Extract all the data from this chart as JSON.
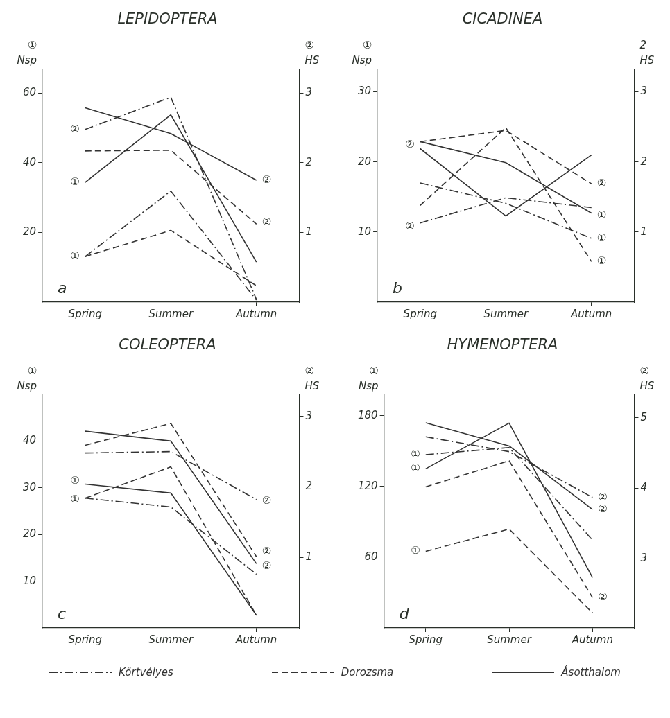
{
  "chart_data": [
    {
      "type": "line",
      "title": "LEPIDOPTERA",
      "ylabel": "① Nsp",
      "y2label": "② HS",
      "categories": [
        "Spring",
        "Summer",
        "Autumn"
      ],
      "ylim": [
        0,
        67
      ],
      "yticks": [
        20,
        40,
        60
      ],
      "y2lim": [
        0,
        3.35
      ],
      "y2ticks": [
        1,
        2,
        3
      ],
      "marker": "none",
      "series": [
        {
          "axis": "y",
          "line_style": "dashdot",
          "color": "#333333",
          "values": [
            13.1,
            31.9,
            0.6
          ]
        },
        {
          "axis": "y2",
          "line_style": "dashdot",
          "color": "#333333",
          "values": [
            2.48,
            2.94,
            0.04
          ]
        },
        {
          "axis": "y",
          "line_style": "dashed",
          "color": "#333333",
          "values": [
            13.1,
            20.6,
            4.7
          ]
        },
        {
          "axis": "y2",
          "line_style": "dashed",
          "color": "#333333",
          "values": [
            2.17,
            2.18,
            1.12
          ]
        },
        {
          "axis": "y",
          "line_style": "solid",
          "color": "#333333",
          "values": [
            34.4,
            53.8,
            11.5
          ]
        },
        {
          "axis": "y2",
          "line_style": "solid",
          "color": "#333333",
          "values": [
            2.79,
            2.42,
            1.75
          ]
        }
      ],
      "annotations": [
        "a",
        {
          "text": "②",
          "x": "Spring",
          "y": 49.5
        },
        {
          "text": "①",
          "x": "Spring",
          "y": 34.4
        },
        {
          "text": "①",
          "x": "Spring",
          "y": 13.2
        },
        {
          "text": "②",
          "x": "Autumn",
          "y": 35
        },
        {
          "text": "②",
          "x": "Autumn",
          "y": 22.9
        }
      ]
    },
    {
      "type": "line",
      "title": "CICADINEA",
      "ylabel": "① Nsp",
      "y2label": "2 HS",
      "categories": [
        "Spring",
        "Summer",
        "Autumn"
      ],
      "ylim": [
        0,
        33.3
      ],
      "yticks": [
        10,
        20,
        30
      ],
      "y2lim": [
        0,
        3.33
      ],
      "y2ticks": [
        1,
        2,
        3
      ],
      "marker": "none",
      "series": [
        {
          "axis": "y",
          "line_style": "dashdot",
          "color": "#333333",
          "values": [
            17.0,
            14.1,
            9.1
          ]
        },
        {
          "axis": "y2",
          "line_style": "dashdot",
          "color": "#333333",
          "values": [
            1.13,
            1.49,
            1.35
          ]
        },
        {
          "axis": "y",
          "line_style": "dashed",
          "color": "#333333",
          "values": [
            13.8,
            24.9,
            5.8
          ]
        },
        {
          "axis": "y2",
          "line_style": "dashed",
          "color": "#333333",
          "values": [
            2.29,
            2.45,
            1.69
          ]
        },
        {
          "axis": "y",
          "line_style": "solid",
          "color": "#333333",
          "values": [
            22.9,
            19.9,
            12.7
          ]
        },
        {
          "axis": "y2",
          "line_style": "solid",
          "color": "#333333",
          "values": [
            2.19,
            1.23,
            2.1
          ]
        }
      ],
      "annotations": [
        "b",
        {
          "text": "②",
          "x": "Spring",
          "y": 22.4
        },
        {
          "text": "②",
          "x": "Spring",
          "y": 10.8
        },
        {
          "text": "②",
          "x": "Autumn",
          "y": 16.9
        },
        {
          "text": "①",
          "x": "Autumn",
          "y": 12.3
        },
        {
          "text": "①",
          "x": "Autumn",
          "y": 9.1
        },
        {
          "text": "①",
          "x": "Autumn",
          "y": 5.8
        }
      ]
    },
    {
      "type": "line",
      "title": "COLEOPTERA",
      "ylabel": "① Nsp",
      "y2label": "② HS",
      "categories": [
        "Spring",
        "Summer",
        "Autumn"
      ],
      "ylim": [
        0,
        50
      ],
      "yticks": [
        10,
        20,
        30,
        40
      ],
      "y2lim": [
        0,
        3.31
      ],
      "y2ticks": [
        1,
        2,
        3
      ],
      "marker": "none",
      "series": [
        {
          "axis": "y",
          "line_style": "dashdot",
          "color": "#333333",
          "values": [
            27.8,
            25.9,
            11.5
          ]
        },
        {
          "axis": "y2",
          "line_style": "dashdot",
          "color": "#333333",
          "values": [
            2.48,
            2.5,
            1.82
          ]
        },
        {
          "axis": "y",
          "line_style": "dashed",
          "color": "#333333",
          "values": [
            27.8,
            34.5,
            2.7
          ]
        },
        {
          "axis": "y2",
          "line_style": "dashed",
          "color": "#333333",
          "values": [
            2.59,
            2.9,
            1.01
          ]
        },
        {
          "axis": "y",
          "line_style": "solid",
          "color": "#333333",
          "values": [
            30.8,
            28.9,
            2.7
          ]
        },
        {
          "axis": "y2",
          "line_style": "solid",
          "color": "#333333",
          "values": [
            2.79,
            2.65,
            0.91
          ]
        }
      ],
      "annotations": [
        "c",
        {
          "text": "①",
          "x": "Spring",
          "y": 31.4
        },
        {
          "text": "①",
          "x": "Spring",
          "y": 27.4
        },
        {
          "text": "②",
          "x": "Autumn",
          "y": 27.1
        },
        {
          "text": "②",
          "x": "Autumn",
          "y": 16.3
        },
        {
          "text": "②",
          "x": "Autumn",
          "y": 13.2
        }
      ]
    },
    {
      "type": "line",
      "title": "HYMENOPTERA",
      "ylabel": "① Nsp",
      "y2label": "② HS",
      "categories": [
        "Spring",
        "Summer",
        "Autumn"
      ],
      "ylim": [
        0,
        198
      ],
      "yticks": [
        60,
        120,
        180
      ],
      "y2lim": [
        2.02,
        5.33
      ],
      "y2ticks": [
        3,
        4,
        5
      ],
      "marker": "none",
      "legend": "bottom",
      "series": [
        {
          "name": "Körtvélyes",
          "axis": "y",
          "line_style": "dashdot",
          "color": "#333333",
          "values": [
            147,
            153,
            74.5
          ]
        },
        {
          "axis": "y2",
          "line_style": "dashdot",
          "color": "#333333",
          "values": [
            4.73,
            4.52,
            3.87
          ]
        },
        {
          "name": "Dorozsma",
          "axis": "y",
          "line_style": "dashed",
          "color": "#333333",
          "values": [
            65,
            83.8,
            12.7
          ]
        },
        {
          "axis": "y2",
          "line_style": "dashed",
          "color": "#333333",
          "values": [
            4.02,
            4.39,
            2.45
          ]
        },
        {
          "name": "Ásotthalom",
          "axis": "y",
          "line_style": "solid",
          "color": "#333333",
          "values": [
            135,
            173.8,
            42.7
          ]
        },
        {
          "axis": "y2",
          "line_style": "solid",
          "color": "#333333",
          "values": [
            4.93,
            4.6,
            3.7
          ]
        }
      ],
      "annotations": [
        "d",
        {
          "text": "①",
          "x": "Spring",
          "y": 147
        },
        {
          "text": "①",
          "x": "Spring",
          "y": 135
        },
        {
          "text": "①",
          "x": "Spring",
          "y": 65
        },
        {
          "text": "②",
          "x": "Autumn",
          "y": 110.7
        },
        {
          "text": "②",
          "x": "Autumn",
          "y": 100.5
        },
        {
          "text": "②",
          "x": "Autumn",
          "y": 25.7
        }
      ]
    }
  ]
}
